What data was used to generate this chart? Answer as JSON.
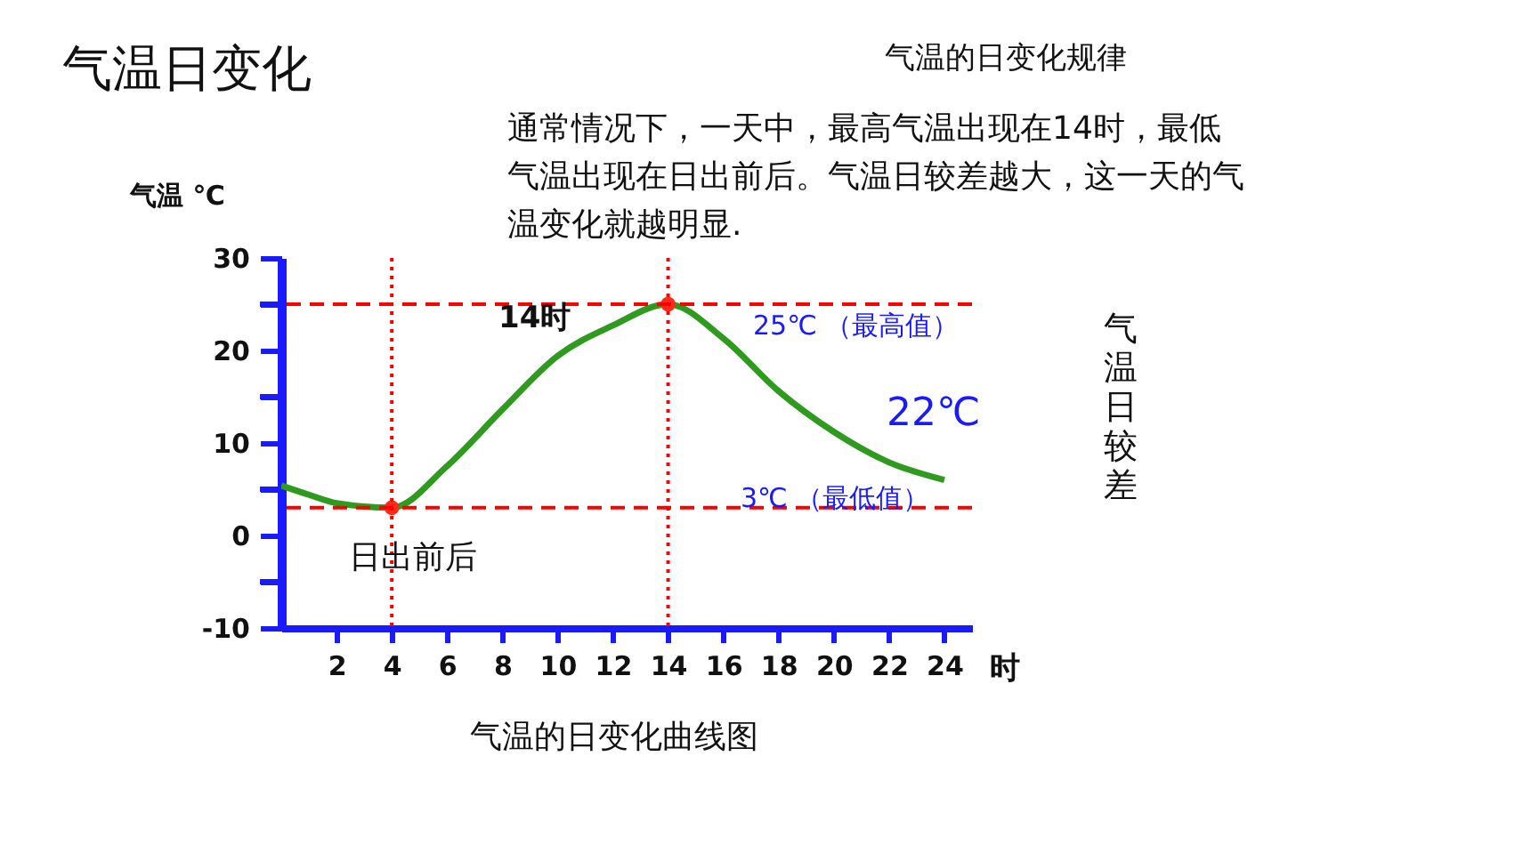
{
  "chart_data": {
    "type": "line",
    "title": "气温日变化",
    "xlabel": "时",
    "ylabel": "气温 ℃",
    "xlim": [
      0,
      25
    ],
    "xticks": [
      2,
      4,
      6,
      8,
      10,
      12,
      14,
      16,
      18,
      20,
      22,
      24
    ],
    "ylim": [
      -10,
      30
    ],
    "yticks": [
      -10,
      {
        "value": -5,
        "label": null
      },
      0,
      {
        "value": 5,
        "label": null
      },
      10,
      {
        "value": 15,
        "label": null
      },
      20,
      {
        "value": 25,
        "label": null
      },
      30
    ],
    "grid": false,
    "x": [
      0,
      1,
      2,
      4,
      6,
      8,
      10,
      12,
      14,
      16,
      18,
      20,
      22,
      24
    ],
    "series": [
      {
        "type": "line",
        "color": "#2e9a1e",
        "values": [
          5.4,
          4.4,
          3.5,
          3,
          7.5,
          13.6,
          19.4,
          22.7,
          25,
          21.3,
          15.6,
          11.2,
          7.9,
          6
        ]
      },
      {
        "type": "scatter",
        "x": [
          4,
          14
        ],
        "values": [
          3,
          25
        ],
        "color": "#ff2a1a"
      }
    ],
    "ref_lines": [
      {
        "axis": "y",
        "value": 25,
        "color": "#ff0000",
        "line_style": "dashed"
      },
      {
        "axis": "y",
        "value": 3,
        "color": "#ff0000",
        "line_style": "dashed"
      },
      {
        "axis": "x",
        "value": 14,
        "color": "#ff0000",
        "line_style": "dotted"
      },
      {
        "axis": "x",
        "value": 4,
        "color": "#ff0000",
        "line_style": "dotted"
      }
    ],
    "annotations": [
      "气温的日变化规律",
      "通常情况下，一天中，最高气温出现在14时，最低气温出现在日出前后。气温日较差越大，这一天的气温变化就越明显.",
      "14时",
      "25℃ （最高值）",
      "22℃",
      "3℃ （最低值）",
      "日出前后",
      "气温日较差",
      "气温的日变化曲线图"
    ]
  }
}
